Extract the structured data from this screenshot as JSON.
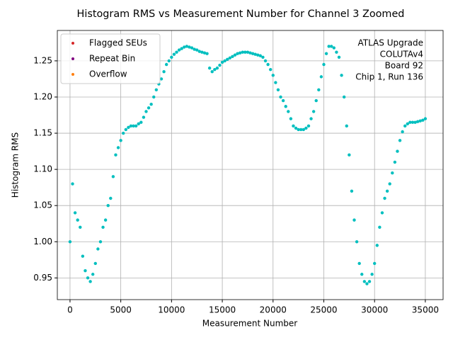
{
  "chart_data": {
    "type": "scatter",
    "title": "Histogram RMS vs Measurement Number for Channel 3 Zoomed",
    "xlabel": "Measurement Number",
    "ylabel": "Histogram RMS",
    "annotation": [
      "ATLAS Upgrade",
      "COLUTAv4",
      "Board 92",
      "Chip 1, Run 136"
    ],
    "xlim": [
      -1250,
      36750
    ],
    "ylim": [
      0.92,
      1.292
    ],
    "xticks": [
      0,
      5000,
      10000,
      15000,
      20000,
      25000,
      30000,
      35000
    ],
    "yticks": [
      0.95,
      {
        "value": 1,
        "label": "1.00"
      },
      1.05,
      {
        "value": 1.1,
        "label": "1.10"
      },
      1.15,
      {
        "value": 1.2,
        "label": "1.20"
      },
      1.25
    ],
    "grid": true,
    "legend": "upper left",
    "series": [
      {
        "color": "#00bfbf",
        "x": [
          0,
          250,
          500,
          750,
          1000,
          1250,
          1500,
          1750,
          2000,
          2250,
          2500,
          2750,
          3000,
          3250,
          3500,
          3750,
          4000,
          4250,
          4500,
          4750,
          5000,
          5250,
          5500,
          5750,
          6000,
          6250,
          6500,
          6750,
          7000,
          7250,
          7500,
          7750,
          8000,
          8250,
          8500,
          8750,
          9000,
          9250,
          9500,
          9750,
          10000,
          10250,
          10500,
          10750,
          11000,
          11250,
          11500,
          11750,
          12000,
          12250,
          12500,
          12750,
          13000,
          13250,
          13500,
          13750,
          14000,
          14250,
          14500,
          14750,
          15000,
          15250,
          15500,
          15750,
          16000,
          16250,
          16500,
          16750,
          17000,
          17250,
          17500,
          17750,
          18000,
          18250,
          18500,
          18750,
          19000,
          19250,
          19500,
          19750,
          20000,
          20250,
          20500,
          20750,
          21000,
          21250,
          21500,
          21750,
          22000,
          22250,
          22500,
          22750,
          23000,
          23250,
          23500,
          23750,
          24000,
          24250,
          24500,
          24750,
          25000,
          25250,
          25500,
          25750,
          26000,
          26250,
          26500,
          26750,
          27000,
          27250,
          27500,
          27750,
          28000,
          28250,
          28500,
          28750,
          29000,
          29250,
          29500,
          29750,
          30000,
          30250,
          30500,
          30750,
          31000,
          31250,
          31500,
          31750,
          32000,
          32250,
          32500,
          32750,
          33000,
          33250,
          33500,
          33750,
          34000,
          34250,
          34500,
          34750,
          35000
        ],
        "values": [
          1.0,
          1.08,
          1.04,
          1.03,
          1.02,
          0.98,
          0.96,
          0.95,
          0.945,
          0.955,
          0.97,
          0.99,
          1.0,
          1.02,
          1.03,
          1.05,
          1.06,
          1.09,
          1.12,
          1.13,
          1.14,
          1.15,
          1.155,
          1.158,
          1.16,
          1.16,
          1.16,
          1.163,
          1.165,
          1.172,
          1.18,
          1.185,
          1.19,
          1.2,
          1.21,
          1.218,
          1.225,
          1.235,
          1.245,
          1.25,
          1.255,
          1.259,
          1.262,
          1.265,
          1.267,
          1.269,
          1.27,
          1.269,
          1.268,
          1.266,
          1.265,
          1.263,
          1.262,
          1.261,
          1.26,
          1.24,
          1.235,
          1.238,
          1.24,
          1.244,
          1.248,
          1.25,
          1.252,
          1.254,
          1.256,
          1.258,
          1.26,
          1.261,
          1.262,
          1.262,
          1.262,
          1.261,
          1.26,
          1.259,
          1.258,
          1.257,
          1.255,
          1.25,
          1.245,
          1.238,
          1.23,
          1.22,
          1.21,
          1.2,
          1.195,
          1.187,
          1.18,
          1.17,
          1.16,
          1.157,
          1.155,
          1.155,
          1.155,
          1.157,
          1.16,
          1.17,
          1.18,
          1.195,
          1.21,
          1.228,
          1.245,
          1.26,
          1.27,
          1.27,
          1.268,
          1.262,
          1.255,
          1.23,
          1.2,
          1.16,
          1.12,
          1.07,
          1.03,
          1.0,
          0.97,
          0.955,
          0.945,
          0.942,
          0.945,
          0.955,
          0.97,
          0.995,
          1.02,
          1.04,
          1.06,
          1.07,
          1.08,
          1.095,
          1.11,
          1.125,
          1.14,
          1.152,
          1.16,
          1.163,
          1.165,
          1.165,
          1.165,
          1.166,
          1.167,
          1.168,
          1.17
        ]
      },
      {
        "name": "Flagged SEUs",
        "color": "#d62728",
        "x": [],
        "values": []
      },
      {
        "name": "Repeat Bin",
        "color": "#800080",
        "x": [],
        "values": []
      },
      {
        "name": "Overflow",
        "color": "#ff7f0e",
        "x": [],
        "values": []
      }
    ]
  }
}
